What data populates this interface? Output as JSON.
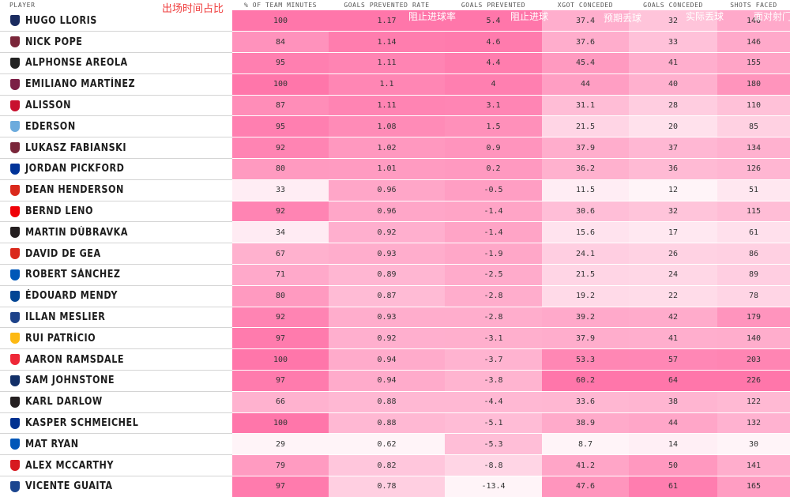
{
  "headers": {
    "player": "PLAYER",
    "minutes": "% OF TEAM MINUTES",
    "rate": "GOALS PREVENTED RATE",
    "prevented": "GOALS PREVENTED",
    "xgot": "XGOT CONCEDED",
    "conceded": "GOALS CONCEDED",
    "shots": "SHOTS FACED"
  },
  "annotations": {
    "minutes": "出场时间占比",
    "rate": "阻止进球率",
    "prevented": "阻止进球",
    "xgot": "预期丢球",
    "conceded": "实际丢球",
    "shots": "面对射门"
  },
  "colors": {
    "accent": "#ff6ba6",
    "annotation_red": "#ef3d3d",
    "annotation_white": "#ffffff"
  },
  "players": [
    {
      "name": "HUGO LLORIS",
      "club_icon": "tottenham-crest-icon",
      "crest_color": "#1a2b5f",
      "minutes": "100",
      "rate": "1.17",
      "prevented": "5.4",
      "xgot": "37.4",
      "conceded": "32",
      "shots": "146"
    },
    {
      "name": "NICK POPE",
      "club_icon": "burnley-crest-icon",
      "crest_color": "#7a263a",
      "minutes": "84",
      "rate": "1.14",
      "prevented": "4.6",
      "xgot": "37.6",
      "conceded": "33",
      "shots": "146"
    },
    {
      "name": "ALPHONSE AREOLA",
      "club_icon": "fulham-crest-icon",
      "crest_color": "#222222",
      "minutes": "95",
      "rate": "1.11",
      "prevented": "4.4",
      "xgot": "45.4",
      "conceded": "41",
      "shots": "155"
    },
    {
      "name": "EMILIANO MARTÍNEZ",
      "club_icon": "aston-villa-crest-icon",
      "crest_color": "#7b1e45",
      "minutes": "100",
      "rate": "1.1",
      "prevented": "4",
      "xgot": "44",
      "conceded": "40",
      "shots": "180"
    },
    {
      "name": "ALISSON",
      "club_icon": "liverpool-crest-icon",
      "crest_color": "#c8102e",
      "minutes": "87",
      "rate": "1.11",
      "prevented": "3.1",
      "xgot": "31.1",
      "conceded": "28",
      "shots": "110"
    },
    {
      "name": "EDERSON",
      "club_icon": "man-city-crest-icon",
      "crest_color": "#6cabdd",
      "minutes": "95",
      "rate": "1.08",
      "prevented": "1.5",
      "xgot": "21.5",
      "conceded": "20",
      "shots": "85"
    },
    {
      "name": "LUKASZ FABIANSKI",
      "club_icon": "west-ham-crest-icon",
      "crest_color": "#7a263a",
      "minutes": "92",
      "rate": "1.02",
      "prevented": "0.9",
      "xgot": "37.9",
      "conceded": "37",
      "shots": "134"
    },
    {
      "name": "JORDAN PICKFORD",
      "club_icon": "everton-crest-icon",
      "crest_color": "#003399",
      "minutes": "80",
      "rate": "1.01",
      "prevented": "0.2",
      "xgot": "36.2",
      "conceded": "36",
      "shots": "126"
    },
    {
      "name": "DEAN HENDERSON",
      "club_icon": "man-united-crest-icon",
      "crest_color": "#da291c",
      "minutes": "33",
      "rate": "0.96",
      "prevented": "-0.5",
      "xgot": "11.5",
      "conceded": "12",
      "shots": "51"
    },
    {
      "name": "BERND LENO",
      "club_icon": "arsenal-crest-icon",
      "crest_color": "#ef0107",
      "minutes": "92",
      "rate": "0.96",
      "prevented": "-1.4",
      "xgot": "30.6",
      "conceded": "32",
      "shots": "115"
    },
    {
      "name": "MARTIN DÚBRAVKA",
      "club_icon": "newcastle-crest-icon",
      "crest_color": "#241f20",
      "minutes": "34",
      "rate": "0.92",
      "prevented": "-1.4",
      "xgot": "15.6",
      "conceded": "17",
      "shots": "61"
    },
    {
      "name": "DAVID DE GEA",
      "club_icon": "man-united-crest-icon",
      "crest_color": "#da291c",
      "minutes": "67",
      "rate": "0.93",
      "prevented": "-1.9",
      "xgot": "24.1",
      "conceded": "26",
      "shots": "86"
    },
    {
      "name": "ROBERT SÁNCHEZ",
      "club_icon": "brighton-crest-icon",
      "crest_color": "#0057b8",
      "minutes": "71",
      "rate": "0.89",
      "prevented": "-2.5",
      "xgot": "21.5",
      "conceded": "24",
      "shots": "89"
    },
    {
      "name": "ÉDOUARD MENDY",
      "club_icon": "chelsea-crest-icon",
      "crest_color": "#034694",
      "minutes": "80",
      "rate": "0.87",
      "prevented": "-2.8",
      "xgot": "19.2",
      "conceded": "22",
      "shots": "78"
    },
    {
      "name": "ILLAN MESLIER",
      "club_icon": "leeds-crest-icon",
      "crest_color": "#1d428a",
      "minutes": "92",
      "rate": "0.93",
      "prevented": "-2.8",
      "xgot": "39.2",
      "conceded": "42",
      "shots": "179"
    },
    {
      "name": "RUI PATRÍCIO",
      "club_icon": "wolves-crest-icon",
      "crest_color": "#fdb913",
      "minutes": "97",
      "rate": "0.92",
      "prevented": "-3.1",
      "xgot": "37.9",
      "conceded": "41",
      "shots": "140"
    },
    {
      "name": "AARON RAMSDALE",
      "club_icon": "sheffield-united-crest-icon",
      "crest_color": "#ee2737",
      "minutes": "100",
      "rate": "0.94",
      "prevented": "-3.7",
      "xgot": "53.3",
      "conceded": "57",
      "shots": "203"
    },
    {
      "name": "SAM JOHNSTONE",
      "club_icon": "west-brom-crest-icon",
      "crest_color": "#122f67",
      "minutes": "97",
      "rate": "0.94",
      "prevented": "-3.8",
      "xgot": "60.2",
      "conceded": "64",
      "shots": "226"
    },
    {
      "name": "KARL DARLOW",
      "club_icon": "newcastle-crest-icon",
      "crest_color": "#241f20",
      "minutes": "66",
      "rate": "0.88",
      "prevented": "-4.4",
      "xgot": "33.6",
      "conceded": "38",
      "shots": "122"
    },
    {
      "name": "KASPER SCHMEICHEL",
      "club_icon": "leicester-crest-icon",
      "crest_color": "#003090",
      "minutes": "100",
      "rate": "0.88",
      "prevented": "-5.1",
      "xgot": "38.9",
      "conceded": "44",
      "shots": "132"
    },
    {
      "name": "MAT RYAN",
      "club_icon": "brighton-crest-icon",
      "crest_color": "#0057b8",
      "minutes": "29",
      "rate": "0.62",
      "prevented": "-5.3",
      "xgot": "8.7",
      "conceded": "14",
      "shots": "30"
    },
    {
      "name": "ALEX MCCARTHY",
      "club_icon": "southampton-crest-icon",
      "crest_color": "#d71920",
      "minutes": "79",
      "rate": "0.82",
      "prevented": "-8.8",
      "xgot": "41.2",
      "conceded": "50",
      "shots": "141"
    },
    {
      "name": "VICENTE GUAITA",
      "club_icon": "crystal-palace-crest-icon",
      "crest_color": "#1b458f",
      "minutes": "97",
      "rate": "0.78",
      "prevented": "-13.4",
      "xgot": "47.6",
      "conceded": "61",
      "shots": "165"
    }
  ]
}
